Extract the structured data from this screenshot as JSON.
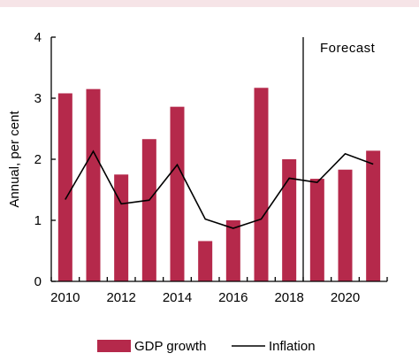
{
  "chart_data": {
    "type": "bar",
    "ylabel": "Annual, per cent",
    "ylim": [
      0,
      4
    ],
    "yticks": [
      "0",
      "1",
      "2",
      "3",
      "4"
    ],
    "x": [
      2010,
      2011,
      2012,
      2013,
      2014,
      2015,
      2016,
      2017,
      2018,
      2019,
      2020,
      2021
    ],
    "xtick_labels": [
      "2010",
      "2012",
      "2014",
      "2016",
      "2018",
      "2020"
    ],
    "series": [
      {
        "name": "GDP growth",
        "type": "bar",
        "color": "#b5294b",
        "values": [
          3.08,
          3.15,
          1.75,
          2.33,
          2.86,
          0.66,
          1.0,
          3.17,
          2.0,
          1.68,
          1.83,
          2.14
        ]
      },
      {
        "name": "Inflation",
        "type": "line",
        "color": "#000000",
        "values": [
          1.34,
          2.13,
          1.27,
          1.33,
          1.91,
          1.02,
          0.87,
          1.02,
          1.69,
          1.62,
          2.09,
          1.92
        ]
      }
    ],
    "annotation": {
      "text": "Forecast",
      "divider_after": 2018
    },
    "legend_position": "bottom",
    "grid": false
  }
}
